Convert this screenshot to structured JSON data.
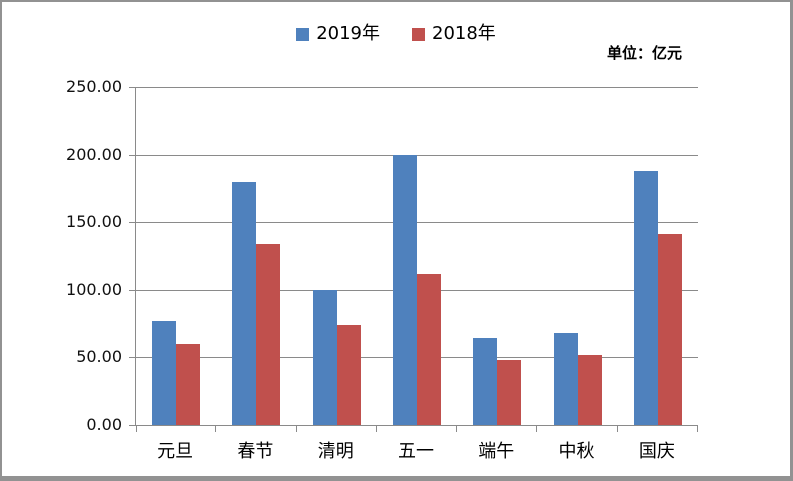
{
  "unit_label": "单位：亿元",
  "chart_data": {
    "type": "bar",
    "title": "",
    "categories": [
      "元旦",
      "春节",
      "清明",
      "五一",
      "端午",
      "中秋",
      "国庆"
    ],
    "series": [
      {
        "name": "2019年",
        "color": "#4F81BD",
        "values": [
          77,
          180,
          100,
          200,
          64,
          68,
          188
        ]
      },
      {
        "name": "2018年",
        "color": "#C0504D",
        "values": [
          60,
          134,
          74,
          112,
          48,
          52,
          141
        ]
      }
    ],
    "xlabel": "",
    "ylabel": "",
    "ylim": [
      0,
      250
    ],
    "ytick_step": 50,
    "ytick_labels": [
      "0.00",
      "50.00",
      "100.00",
      "150.00",
      "200.00",
      "250.00"
    ],
    "grid": true,
    "gridline_color": "#8a8a8a",
    "legend_position": "top-center"
  }
}
